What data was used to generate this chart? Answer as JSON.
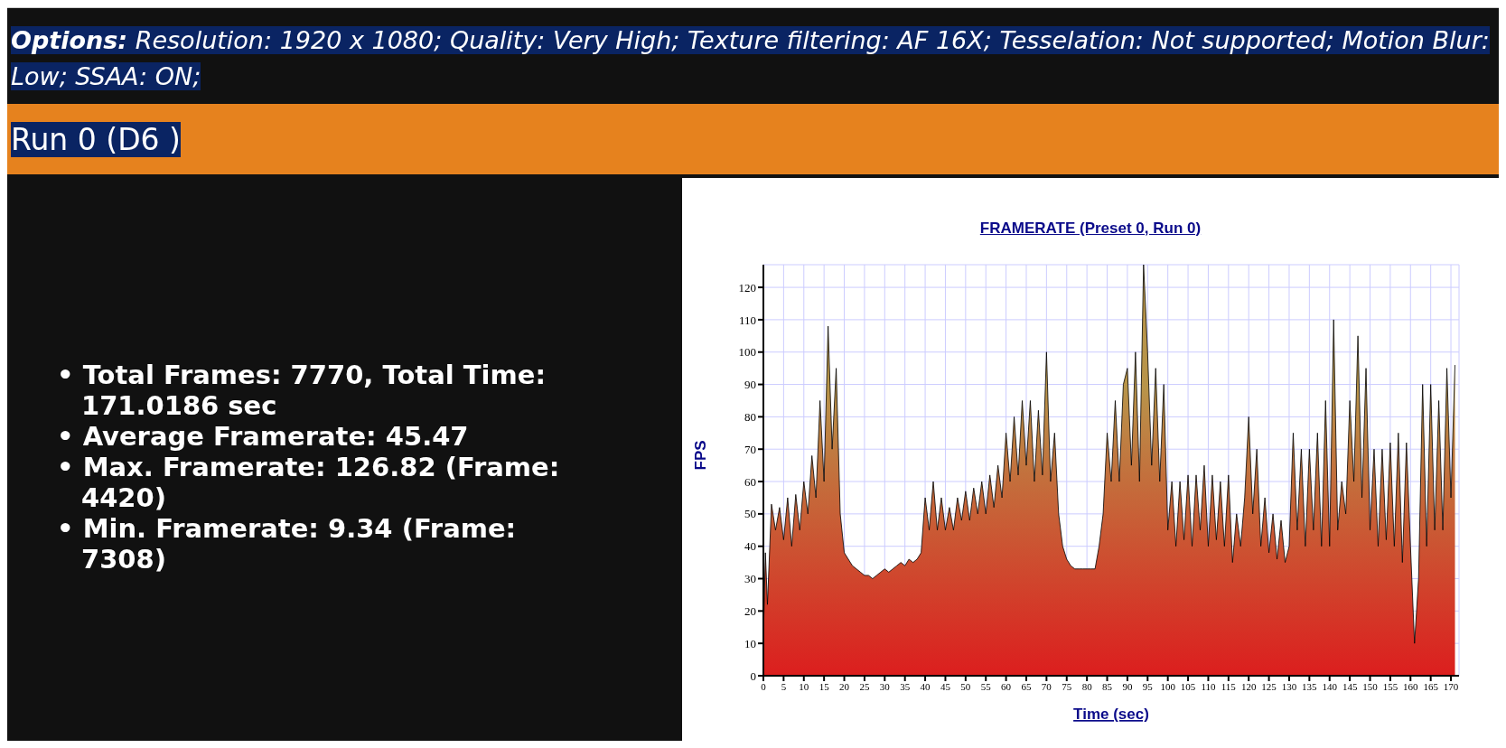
{
  "chart_data": {
    "type": "area",
    "title": "FRAMERATE (Preset 0, Run 0)",
    "xlabel": "Time (sec)",
    "ylabel": "FPS",
    "annotations": [
      "Options: Resolution: 1920 x 1080; Quality: Very High; Texture filtering: AF 16X; Tesselation: Not supported; Motion Blur: Low; SSAA: ON;",
      "Run 0 (D6 )",
      "• Total Frames: 7770, Total Time: 171.0186 sec",
      "• Average Framerate: 45.47",
      "• Max. Framerate: 126.82 (Frame: 4420)",
      "• Min. Framerate: 9.34 (Frame: 7308)"
    ],
    "x": [
      0,
      0.5,
      1,
      2,
      3,
      4,
      5,
      6,
      7,
      8,
      9,
      10,
      11,
      12,
      13,
      14,
      15,
      16,
      17,
      18,
      19,
      20,
      21,
      22,
      23,
      24,
      25,
      26,
      27,
      28,
      29,
      30,
      31,
      32,
      33,
      34,
      35,
      36,
      37,
      38,
      39,
      40,
      41,
      42,
      43,
      44,
      45,
      46,
      47,
      48,
      49,
      50,
      51,
      52,
      53,
      54,
      55,
      56,
      57,
      58,
      59,
      60,
      61,
      62,
      63,
      64,
      65,
      66,
      67,
      68,
      69,
      70,
      71,
      72,
      73,
      74,
      75,
      76,
      77,
      78,
      79,
      80,
      81,
      82,
      83,
      84,
      85,
      86,
      87,
      88,
      89,
      90,
      91,
      92,
      93,
      94,
      95,
      96,
      97,
      98,
      99,
      100,
      101,
      102,
      103,
      104,
      105,
      106,
      107,
      108,
      109,
      110,
      111,
      112,
      113,
      114,
      115,
      116,
      117,
      118,
      119,
      120,
      121,
      122,
      123,
      124,
      125,
      126,
      127,
      128,
      129,
      130,
      131,
      132,
      133,
      134,
      135,
      136,
      137,
      138,
      139,
      140,
      141,
      142,
      143,
      144,
      145,
      146,
      147,
      148,
      149,
      150,
      151,
      152,
      153,
      154,
      155,
      156,
      157,
      158,
      159,
      160,
      161,
      162,
      163,
      164,
      165,
      166,
      167,
      168,
      169,
      170,
      171
    ],
    "series": [
      {
        "color": "#000000",
        "values": [
          12,
          38,
          22,
          53,
          45,
          52,
          42,
          55,
          40,
          56,
          45,
          60,
          50,
          68,
          55,
          85,
          60,
          108,
          70,
          95,
          50,
          38,
          36,
          34,
          33,
          32,
          31,
          31,
          30,
          31,
          32,
          33,
          32,
          33,
          34,
          35,
          34,
          36,
          35,
          36,
          38,
          55,
          45,
          60,
          45,
          55,
          45,
          52,
          45,
          55,
          48,
          57,
          48,
          58,
          50,
          60,
          50,
          62,
          52,
          65,
          55,
          75,
          60,
          80,
          62,
          85,
          65,
          85,
          60,
          82,
          62,
          100,
          60,
          75,
          50,
          40,
          36,
          34,
          33,
          33,
          33,
          33,
          33,
          33,
          40,
          50,
          75,
          60,
          85,
          60,
          90,
          95,
          65,
          100,
          60,
          127,
          100,
          65,
          95,
          60,
          90,
          45,
          60,
          40,
          60,
          42,
          62,
          40,
          62,
          45,
          65,
          40,
          62,
          42,
          60,
          40,
          62,
          35,
          50,
          40,
          55,
          80,
          50,
          70,
          40,
          55,
          38,
          50,
          36,
          48,
          35,
          40,
          75,
          45,
          70,
          40,
          70,
          45,
          75,
          40,
          85,
          40,
          110,
          45,
          60,
          50,
          85,
          60,
          105,
          55,
          95,
          45,
          70,
          40,
          70,
          42,
          72,
          40,
          75,
          35,
          72,
          40,
          10,
          30,
          90,
          40,
          90,
          45,
          85,
          45,
          95,
          55,
          96
        ]
      }
    ],
    "xlim": [
      0,
      172
    ],
    "xticks": [
      0,
      5,
      10,
      15,
      20,
      25,
      30,
      35,
      40,
      45,
      50,
      55,
      60,
      65,
      70,
      75,
      80,
      85,
      90,
      95,
      100,
      105,
      110,
      115,
      120,
      125,
      130,
      135,
      140,
      145,
      150,
      155,
      160,
      165,
      170
    ],
    "ylim": [
      0,
      127
    ],
    "yticks": [
      0,
      10,
      20,
      30,
      40,
      50,
      60,
      70,
      80,
      90,
      100,
      110,
      120
    ],
    "grid": true,
    "legend": false,
    "marker": "none",
    "line_style": "solid"
  }
}
